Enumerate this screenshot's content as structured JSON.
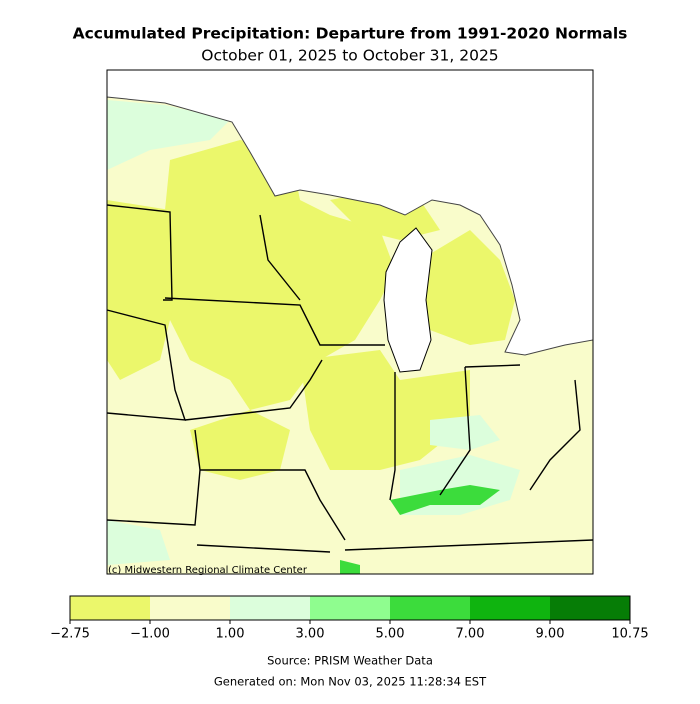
{
  "header": {
    "title": "Accumulated Precipitation: Departure from 1991-2020 Normals",
    "subtitle": "October 01, 2025 to October 31, 2025"
  },
  "map": {
    "credit": "(c) Midwestern Regional Climate Center"
  },
  "legend": {
    "bins": [
      {
        "value": -2.75,
        "label": "−2.75"
      },
      {
        "value": -1,
        "label": "−1.00"
      },
      {
        "value": 1,
        "label": "1.00"
      },
      {
        "value": 3,
        "label": "3.00"
      },
      {
        "value": 5,
        "label": "5.00"
      },
      {
        "value": 7,
        "label": "7.00"
      },
      {
        "value": 9,
        "label": "9.00"
      },
      {
        "value": 10.75,
        "label": "10.75"
      }
    ],
    "colors": [
      "#ebf76b",
      "#f9fccb",
      "#dcfedc",
      "#8ffd8f",
      "#3cdc3c",
      "#0fb40f",
      "#067d06"
    ]
  },
  "footer": {
    "source": "Source: PRISM Weather Data",
    "generated": "Generated on: Mon Nov 03, 2025 11:28:34 EST"
  }
}
